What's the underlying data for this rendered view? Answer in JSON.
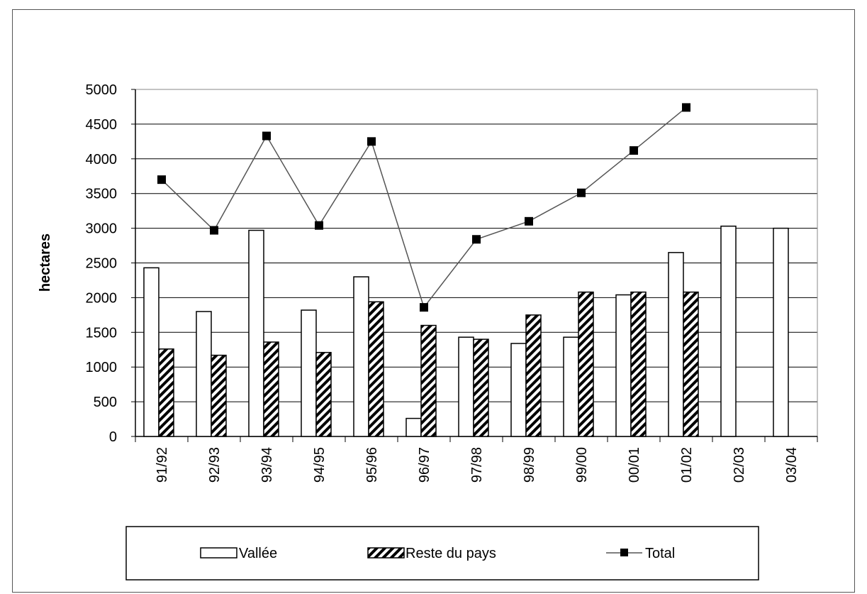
{
  "chart_data": {
    "type": "bar",
    "title": "",
    "xlabel": "",
    "ylabel": "hectares",
    "ylim": [
      0,
      5000
    ],
    "yticks": [
      0,
      500,
      1000,
      1500,
      2000,
      2500,
      3000,
      3500,
      4000,
      4500,
      5000
    ],
    "categories": [
      "91/92",
      "92/93",
      "93/94",
      "94/95",
      "95/96",
      "96/97",
      "97/98",
      "98/99",
      "99/00",
      "00/01",
      "01/02",
      "02/03",
      "03/04"
    ],
    "series": [
      {
        "name": "Vallée",
        "kind": "bar",
        "style": "white",
        "values": [
          2430,
          1800,
          2970,
          1820,
          2300,
          260,
          1430,
          1340,
          1430,
          2040,
          2650,
          3030,
          3000
        ]
      },
      {
        "name": "Reste du pays",
        "kind": "bar",
        "style": "hatched",
        "values": [
          1260,
          1170,
          1360,
          1210,
          1940,
          1600,
          1400,
          1750,
          2080,
          2080,
          2080,
          null,
          null
        ]
      },
      {
        "name": "Total",
        "kind": "line",
        "marker": "square",
        "values": [
          3700,
          2970,
          4330,
          3040,
          4250,
          1860,
          2840,
          3100,
          3510,
          4120,
          4740,
          null,
          null
        ]
      }
    ],
    "grid": true,
    "legend_position": "bottom",
    "colors": {
      "bar_fill": "#ffffff",
      "bar_stroke": "#000000",
      "hatch": "#000000",
      "line": "#555555",
      "marker": "#000000",
      "grid": "#000000"
    }
  }
}
